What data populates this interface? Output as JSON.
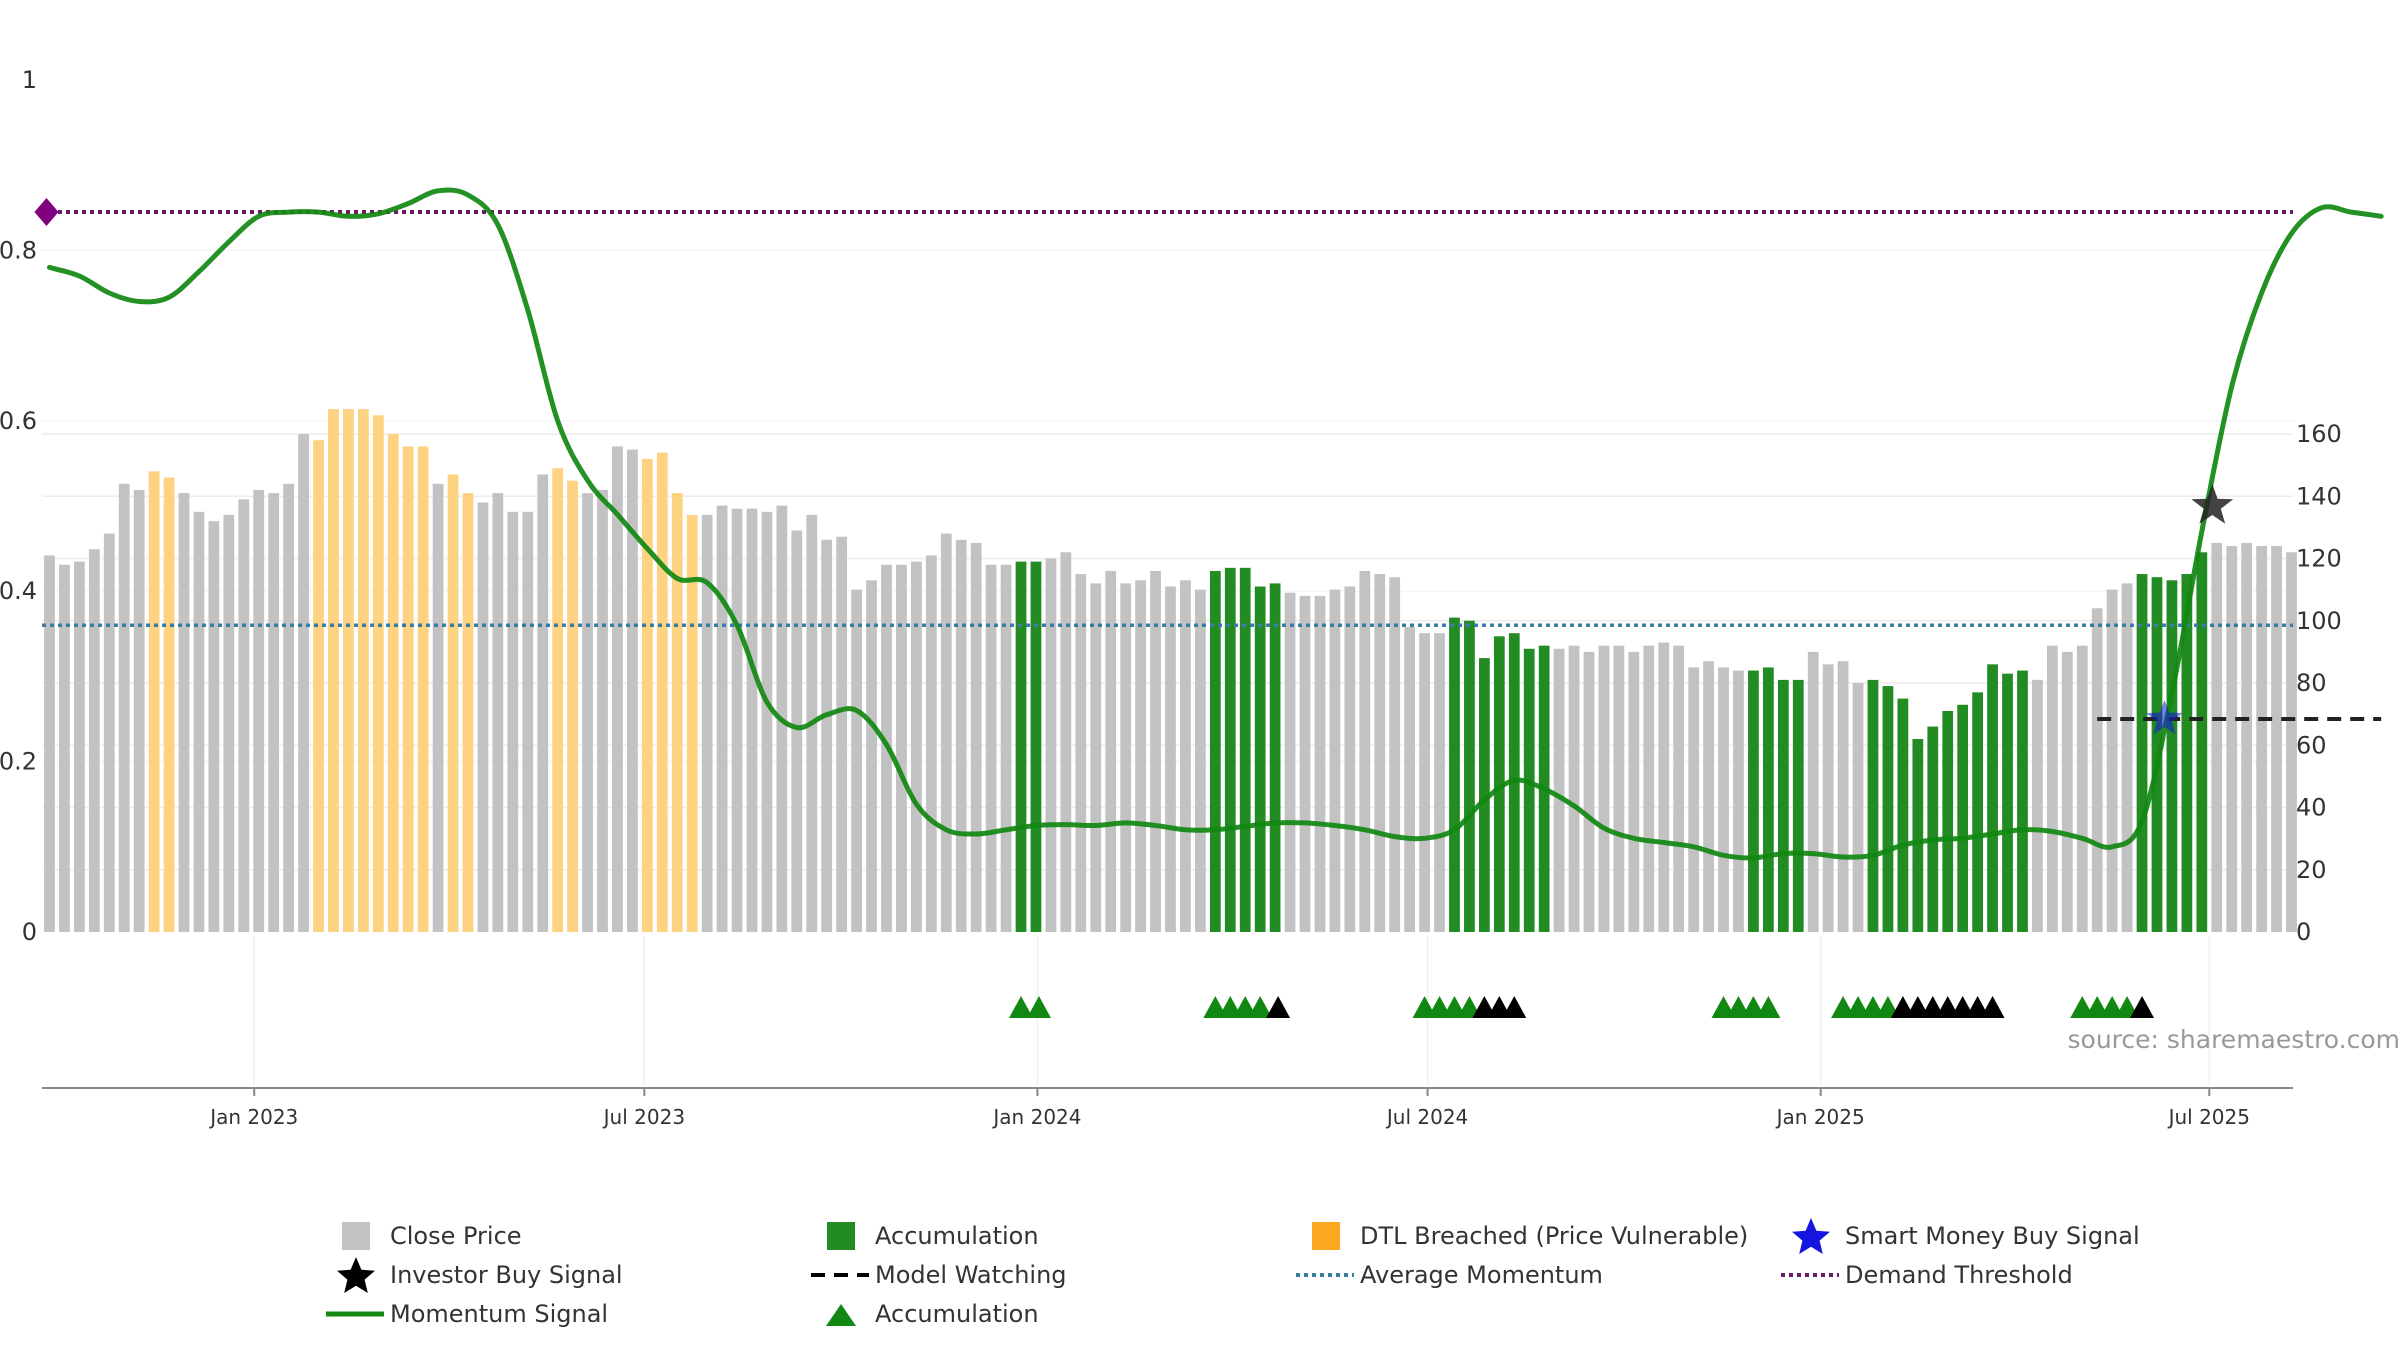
{
  "chart_data": {
    "type": "bar",
    "source_note": "source: sharemaestro.com",
    "left_axis": {
      "ylim": [
        0,
        1
      ],
      "ticks": [
        0,
        0.2,
        0.4,
        0.6,
        0.8,
        1
      ],
      "tick_labels": [
        "0",
        "0.2",
        "0.4",
        "0.6",
        "0.8",
        "1"
      ]
    },
    "right_axis": {
      "ylim": [
        0,
        160
      ],
      "ticks": [
        0,
        20,
        40,
        60,
        80,
        100,
        120,
        140,
        160
      ],
      "tick_labels": [
        "0",
        "20",
        "40",
        "60",
        "80",
        "100",
        "120",
        "140",
        "160"
      ]
    },
    "x_tick_labels": [
      "Jan 2023",
      "Jul 2023",
      "Jan 2024",
      "Jul 2024",
      "Jan 2025",
      "Jul 2025"
    ],
    "x_tick_bars": [
      13.7,
      39.8,
      66.1,
      92.2,
      118.5,
      144.5
    ],
    "close_price": [
      121,
      118,
      119,
      123,
      128,
      144,
      142,
      148,
      146,
      141,
      135,
      132,
      134,
      139,
      142,
      141,
      144,
      160,
      158,
      168,
      168,
      168,
      166,
      160,
      156,
      156,
      144,
      147,
      141,
      138,
      141,
      135,
      135,
      147,
      149,
      145,
      141,
      142,
      156,
      155,
      152,
      154,
      141,
      134,
      134,
      137,
      136,
      136,
      135,
      137,
      129,
      134,
      126,
      127,
      110,
      113,
      118,
      118,
      119,
      121,
      128,
      126,
      125,
      118,
      118,
      119,
      119,
      120,
      122,
      115,
      112,
      116,
      112,
      113,
      116,
      111,
      113,
      110,
      116,
      117,
      117,
      111,
      112,
      109,
      108,
      108,
      110,
      111,
      116,
      115,
      114,
      98,
      96,
      96,
      101,
      100,
      88,
      95,
      96,
      91,
      92,
      91,
      92,
      90,
      92,
      92,
      90,
      92,
      93,
      92,
      85,
      87,
      85,
      84,
      84,
      85,
      81,
      81,
      90,
      86,
      87,
      80,
      81,
      79,
      75,
      62,
      66,
      71,
      73,
      77,
      86,
      83,
      84,
      81,
      92,
      90,
      92,
      104,
      110,
      112,
      115,
      114,
      113,
      115,
      122,
      125,
      124,
      125,
      124,
      124,
      122
    ],
    "bar_colors": [
      "G",
      "G",
      "G",
      "G",
      "G",
      "G",
      "G",
      "O",
      "O",
      "G",
      "G",
      "G",
      "G",
      "G",
      "G",
      "G",
      "G",
      "G",
      "O",
      "O",
      "O",
      "O",
      "O",
      "O",
      "O",
      "O",
      "G",
      "O",
      "O",
      "G",
      "G",
      "G",
      "G",
      "G",
      "O",
      "O",
      "G",
      "G",
      "G",
      "G",
      "O",
      "O",
      "O",
      "O",
      "G",
      "G",
      "G",
      "G",
      "G",
      "G",
      "G",
      "G",
      "G",
      "G",
      "G",
      "G",
      "G",
      "G",
      "G",
      "G",
      "G",
      "G",
      "G",
      "G",
      "G",
      "A",
      "A",
      "G",
      "G",
      "G",
      "G",
      "G",
      "G",
      "G",
      "G",
      "G",
      "G",
      "G",
      "A",
      "A",
      "A",
      "A",
      "A",
      "G",
      "G",
      "G",
      "G",
      "G",
      "G",
      "G",
      "G",
      "G",
      "G",
      "G",
      "A",
      "A",
      "A",
      "A",
      "A",
      "A",
      "A",
      "G",
      "G",
      "G",
      "G",
      "G",
      "G",
      "G",
      "G",
      "G",
      "G",
      "G",
      "G",
      "G",
      "A",
      "A",
      "A",
      "A",
      "G",
      "G",
      "G",
      "G",
      "A",
      "A",
      "A",
      "A",
      "A",
      "A",
      "A",
      "A",
      "A",
      "A",
      "A",
      "G",
      "G",
      "G",
      "G",
      "G",
      "G",
      "G",
      "A",
      "A",
      "A",
      "A",
      "A",
      "G",
      "G",
      "G",
      "G",
      "G",
      "G",
      "G",
      "G",
      "G",
      "G",
      "G",
      "G",
      "G",
      "G",
      "G",
      "G",
      "G"
    ],
    "momentum_signal": [
      [
        0,
        0.78
      ],
      [
        2,
        0.77
      ],
      [
        4,
        0.75
      ],
      [
        6,
        0.74
      ],
      [
        8,
        0.745
      ],
      [
        10,
        0.775
      ],
      [
        12,
        0.81
      ],
      [
        14,
        0.84
      ],
      [
        16,
        0.845
      ],
      [
        18,
        0.845
      ],
      [
        20,
        0.84
      ],
      [
        22,
        0.843
      ],
      [
        24,
        0.855
      ],
      [
        26,
        0.87
      ],
      [
        28,
        0.865
      ],
      [
        30,
        0.83
      ],
      [
        32,
        0.73
      ],
      [
        34,
        0.6
      ],
      [
        36,
        0.53
      ],
      [
        38,
        0.49
      ],
      [
        40,
        0.45
      ],
      [
        42,
        0.415
      ],
      [
        44,
        0.41
      ],
      [
        46,
        0.36
      ],
      [
        48,
        0.27
      ],
      [
        50,
        0.24
      ],
      [
        52,
        0.255
      ],
      [
        54,
        0.26
      ],
      [
        56,
        0.22
      ],
      [
        58,
        0.15
      ],
      [
        60,
        0.12
      ],
      [
        62,
        0.115
      ],
      [
        64,
        0.12
      ],
      [
        66,
        0.125
      ],
      [
        68,
        0.126
      ],
      [
        70,
        0.125
      ],
      [
        72,
        0.128
      ],
      [
        74,
        0.125
      ],
      [
        76,
        0.12
      ],
      [
        78,
        0.12
      ],
      [
        80,
        0.124
      ],
      [
        82,
        0.128
      ],
      [
        84,
        0.128
      ],
      [
        86,
        0.125
      ],
      [
        88,
        0.12
      ],
      [
        90,
        0.112
      ],
      [
        92,
        0.11
      ],
      [
        94,
        0.12
      ],
      [
        96,
        0.155
      ],
      [
        98,
        0.178
      ],
      [
        100,
        0.168
      ],
      [
        102,
        0.148
      ],
      [
        104,
        0.122
      ],
      [
        106,
        0.11
      ],
      [
        108,
        0.105
      ],
      [
        110,
        0.1
      ],
      [
        112,
        0.09
      ],
      [
        114,
        0.087
      ],
      [
        116,
        0.092
      ],
      [
        118,
        0.092
      ],
      [
        120,
        0.088
      ],
      [
        122,
        0.09
      ],
      [
        124,
        0.102
      ],
      [
        126,
        0.108
      ],
      [
        128,
        0.11
      ],
      [
        130,
        0.115
      ],
      [
        132,
        0.12
      ],
      [
        134,
        0.118
      ],
      [
        136,
        0.11
      ],
      [
        138,
        0.1
      ],
      [
        140,
        0.13
      ],
      [
        142,
        0.28
      ],
      [
        144,
        0.47
      ],
      [
        146,
        0.64
      ],
      [
        148,
        0.75
      ],
      [
        150,
        0.82
      ],
      [
        152,
        0.85
      ],
      [
        154,
        0.845
      ],
      [
        156,
        0.84
      ]
    ],
    "average_momentum": 0.36,
    "demand_threshold": 0.845,
    "model_watching": {
      "x_bars": [
        137,
        156
      ],
      "y": 0.25
    },
    "investor_buy_signal": {
      "x_bar": 144.7,
      "y": 0.5
    },
    "smart_money_buy_signal": {
      "x_bar": 141.5,
      "y": 0.25
    },
    "accumulation_markers": [
      {
        "x": 65,
        "color": "green"
      },
      {
        "x": 66.2,
        "color": "green"
      },
      {
        "x": 78,
        "color": "green"
      },
      {
        "x": 79,
        "color": "green"
      },
      {
        "x": 80,
        "color": "green"
      },
      {
        "x": 81,
        "color": "green"
      },
      {
        "x": 82.2,
        "color": "black"
      },
      {
        "x": 92,
        "color": "green"
      },
      {
        "x": 93,
        "color": "green"
      },
      {
        "x": 94,
        "color": "green"
      },
      {
        "x": 95,
        "color": "green"
      },
      {
        "x": 96,
        "color": "black"
      },
      {
        "x": 97,
        "color": "black"
      },
      {
        "x": 98,
        "color": "black"
      },
      {
        "x": 112,
        "color": "green"
      },
      {
        "x": 113,
        "color": "green"
      },
      {
        "x": 114,
        "color": "green"
      },
      {
        "x": 115,
        "color": "green"
      },
      {
        "x": 120,
        "color": "green"
      },
      {
        "x": 121,
        "color": "green"
      },
      {
        "x": 122,
        "color": "green"
      },
      {
        "x": 123,
        "color": "green"
      },
      {
        "x": 124,
        "color": "black"
      },
      {
        "x": 125,
        "color": "black"
      },
      {
        "x": 126,
        "color": "black"
      },
      {
        "x": 127,
        "color": "black"
      },
      {
        "x": 128,
        "color": "black"
      },
      {
        "x": 129,
        "color": "black"
      },
      {
        "x": 130,
        "color": "black"
      },
      {
        "x": 136,
        "color": "green"
      },
      {
        "x": 137,
        "color": "green"
      },
      {
        "x": 138,
        "color": "green"
      },
      {
        "x": 139,
        "color": "green"
      },
      {
        "x": 140,
        "color": "black"
      }
    ],
    "start_marker": {
      "x_bar": 0,
      "y": 0.845
    },
    "colors": {
      "close_price": "#c2c2c2",
      "accumulation": "#228b22",
      "dtl_breached": "#fdd281",
      "momentum": "#118811",
      "average_momentum": "#3a7ca5",
      "demand_threshold": "#6b1a6b",
      "smart_money": "#1515e0",
      "start_marker": "#800080"
    },
    "legend": {
      "close_price": "Close Price",
      "accumulation": "Accumulation",
      "dtl_breached": "DTL Breached (Price Vulnerable)",
      "smart_money": "Smart Money Buy Signal",
      "investor_buy": "Investor Buy Signal",
      "model_watching": "Model Watching",
      "average_momentum": "Average Momentum",
      "demand_threshold": "Demand Threshold",
      "momentum_signal": "Momentum Signal",
      "accumulation_markers": "Accumulation"
    }
  }
}
